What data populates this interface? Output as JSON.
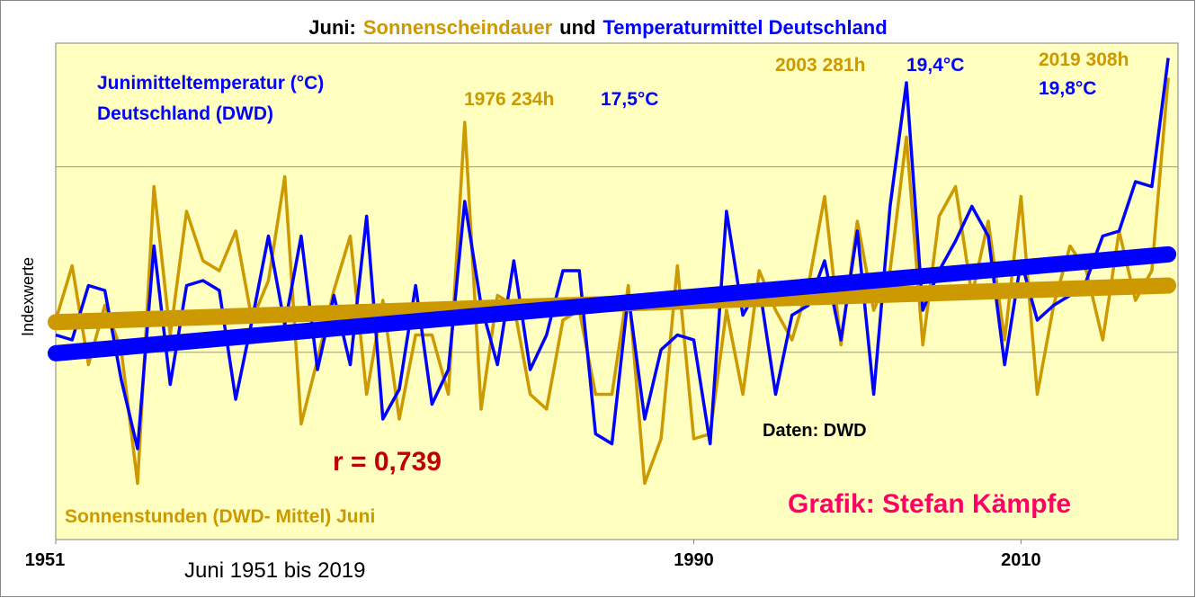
{
  "chart_data": {
    "type": "line",
    "title": [
      {
        "text": "Juni:",
        "color": "#000000"
      },
      {
        "text": "Sonnenscheindauer",
        "color": "#cc9900"
      },
      {
        "text": "und",
        "color": "#000000"
      },
      {
        "text": "Temperaturmittel Deutschland",
        "color": "#0000ff"
      }
    ],
    "y_label": "Indexwerte",
    "x": [
      1951,
      1952,
      1953,
      1954,
      1955,
      1956,
      1957,
      1958,
      1959,
      1960,
      1961,
      1962,
      1963,
      1964,
      1965,
      1966,
      1967,
      1968,
      1969,
      1970,
      1971,
      1972,
      1973,
      1974,
      1975,
      1976,
      1977,
      1978,
      1979,
      1980,
      1981,
      1982,
      1983,
      1984,
      1985,
      1986,
      1987,
      1988,
      1989,
      1990,
      1991,
      1992,
      1993,
      1994,
      1995,
      1996,
      1997,
      1998,
      1999,
      2000,
      2001,
      2002,
      2003,
      2004,
      2005,
      2006,
      2007,
      2008,
      2009,
      2010,
      2011,
      2012,
      2013,
      2014,
      2015,
      2016,
      2017,
      2018,
      2019
    ],
    "xlim": [
      1951,
      2019.6
    ],
    "xticks": [
      1951,
      1990,
      2010
    ],
    "ylim": [
      0,
      100
    ],
    "gridlines": [
      37.5,
      75
    ],
    "series": [
      {
        "color": "#cc9900",
        "trend": [
          43.6,
          51
        ],
        "values": [
          44,
          55,
          35,
          47,
          38,
          11,
          71,
          41,
          66,
          56,
          54,
          62,
          44,
          52,
          73,
          23,
          36,
          50,
          61,
          29,
          48,
          24,
          41,
          41,
          29,
          84,
          26,
          49,
          47,
          29,
          26,
          44,
          46,
          29,
          29,
          51,
          11,
          20,
          55,
          20,
          21,
          46,
          29,
          54,
          46,
          40,
          51,
          69,
          39,
          64,
          46,
          54,
          81,
          39,
          65,
          71,
          49,
          64,
          40,
          69,
          29,
          47,
          59,
          54,
          40,
          62,
          48,
          54,
          93
        ]
      },
      {
        "color": "#0000ff",
        "trend": [
          37.3,
          57.3
        ],
        "values": [
          41,
          40,
          51,
          50,
          32,
          18,
          59,
          31,
          51,
          52,
          50,
          28,
          44,
          61,
          43,
          61,
          34,
          49,
          35,
          65,
          24,
          30,
          51,
          27,
          34,
          68,
          47,
          35,
          56,
          34,
          41,
          54,
          54,
          21,
          19,
          49,
          24,
          38,
          41,
          40,
          19,
          66,
          45,
          51,
          29,
          45,
          47,
          56,
          40,
          62,
          29,
          67,
          92,
          46,
          54,
          60,
          67,
          61,
          35,
          56,
          44,
          47,
          49,
          52,
          61,
          62,
          72,
          71,
          97
        ]
      }
    ],
    "annotations": [
      {
        "text": "Junimitteltemperatur (°C)",
        "color": "#0000ff"
      },
      {
        "text": "Deutschland (DWD)",
        "color": "#0000ff"
      },
      {
        "text": "1976 234h",
        "color": "#cc9900"
      },
      {
        "text": "17,5°C",
        "color": "#0000ff"
      },
      {
        "text": "2003 281h",
        "color": "#cc9900"
      },
      {
        "text": "19,4°C",
        "color": "#0000ff"
      },
      {
        "text": "2019 308h",
        "color": "#cc9900"
      },
      {
        "text": "19,8°C",
        "color": "#0000ff"
      },
      {
        "text": "r = 0,739",
        "color": "#c00000"
      },
      {
        "text": "Daten: DWD",
        "color": "#000000"
      },
      {
        "text": "Grafik: Stefan Kämpfe",
        "color": "#ff0066"
      },
      {
        "text": "Sonnenstunden (DWD- Mittel) Juni",
        "color": "#cc9900"
      },
      {
        "text": "Juni 1951 bis 2019",
        "color": "#000000"
      }
    ]
  }
}
